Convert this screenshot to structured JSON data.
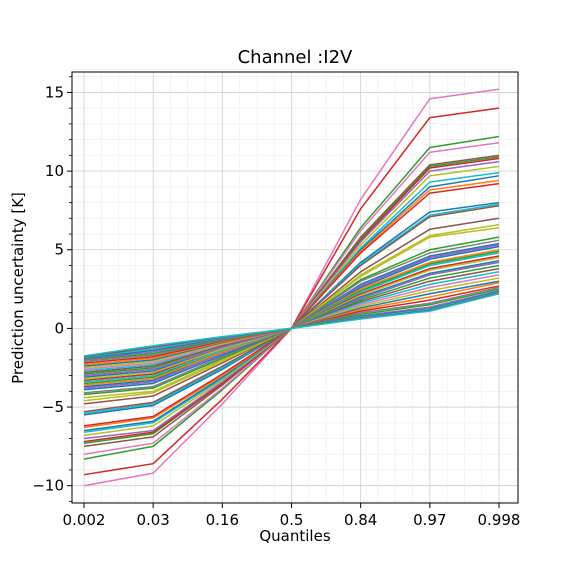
{
  "chart_data": {
    "type": "line",
    "title": "Channel :I2V",
    "xlabel": "Quantiles",
    "ylabel": "Prediction uncertainty [K]",
    "categories": [
      "0.002",
      "0.03",
      "0.16",
      "0.5",
      "0.84",
      "0.97",
      "0.998"
    ],
    "ylim": [
      -11.1,
      16.3
    ],
    "yticks": [
      -10,
      -5,
      0,
      5,
      10,
      15
    ],
    "ytick_labels": [
      "−10",
      "−5",
      "0",
      "5",
      "10",
      "15"
    ],
    "grid": true,
    "legend": "none",
    "colors": [
      "#1f77b4",
      "#ff7f0e",
      "#2ca02c",
      "#d62728",
      "#9467bd",
      "#8c564b",
      "#e377c2",
      "#7f7f7f",
      "#bcbd22",
      "#17becf"
    ],
    "series": [
      {
        "values": [
          -10.0,
          -9.2,
          -4.8,
          0,
          8.2,
          14.6,
          15.2
        ],
        "color": "#e377c2"
      },
      {
        "values": [
          -9.3,
          -8.6,
          -4.5,
          0,
          7.6,
          13.4,
          14.0
        ],
        "color": "#d62728"
      },
      {
        "values": [
          -8.3,
          -7.5,
          -3.9,
          0,
          6.4,
          11.5,
          12.2
        ],
        "color": "#2ca02c"
      },
      {
        "values": [
          -8.0,
          -7.3,
          -3.8,
          0,
          6.2,
          11.2,
          11.8
        ],
        "color": "#e377c2"
      },
      {
        "values": [
          -7.5,
          -6.9,
          -3.6,
          0,
          5.8,
          10.4,
          11.0
        ],
        "color": "#8c564b"
      },
      {
        "values": [
          -7.3,
          -6.7,
          -3.5,
          0,
          5.7,
          10.3,
          10.9
        ],
        "color": "#2ca02c"
      },
      {
        "values": [
          -7.2,
          -6.6,
          -3.5,
          0,
          5.6,
          10.2,
          10.8
        ],
        "color": "#d62728"
      },
      {
        "values": [
          -7.0,
          -6.5,
          -3.4,
          0,
          5.5,
          10.0,
          10.6
        ],
        "color": "#9467bd"
      },
      {
        "values": [
          -6.8,
          -6.2,
          -3.3,
          0,
          5.3,
          9.7,
          10.3
        ],
        "color": "#bcbd22"
      },
      {
        "values": [
          -6.6,
          -6.0,
          -3.2,
          0,
          5.1,
          9.3,
          9.9
        ],
        "color": "#17becf"
      },
      {
        "values": [
          -6.5,
          -5.9,
          -3.1,
          0,
          5.0,
          9.0,
          9.7
        ],
        "color": "#1f77b4"
      },
      {
        "values": [
          -6.3,
          -5.7,
          -3.0,
          0,
          4.9,
          8.8,
          9.4
        ],
        "color": "#ff7f0e"
      },
      {
        "values": [
          -6.2,
          -5.6,
          -2.9,
          0,
          4.8,
          8.6,
          9.2
        ],
        "color": "#d62728"
      },
      {
        "values": [
          -5.5,
          -4.9,
          -2.6,
          0,
          4.2,
          7.4,
          8.0
        ],
        "color": "#1f77b4"
      },
      {
        "values": [
          -5.4,
          -4.8,
          -2.5,
          0,
          4.1,
          7.2,
          7.9
        ],
        "color": "#17becf"
      },
      {
        "values": [
          -5.3,
          -4.7,
          -2.4,
          0,
          4.0,
          7.1,
          7.8
        ],
        "color": "#8c564b"
      },
      {
        "values": [
          -4.8,
          -4.3,
          -2.2,
          0,
          3.6,
          6.3,
          7.0
        ],
        "color": "#8c564b"
      },
      {
        "values": [
          -4.6,
          -4.1,
          -2.1,
          0,
          3.4,
          5.9,
          6.6
        ],
        "color": "#bcbd22"
      },
      {
        "values": [
          -4.4,
          -4.0,
          -2.0,
          0,
          3.3,
          5.8,
          6.4
        ],
        "color": "#bcbd22"
      },
      {
        "values": [
          -4.2,
          -3.8,
          -1.9,
          0,
          3.1,
          5.0,
          5.8
        ],
        "color": "#2ca02c"
      },
      {
        "values": [
          -4.1,
          -3.7,
          -1.8,
          0,
          3.0,
          4.8,
          5.6
        ],
        "color": "#7f7f7f"
      },
      {
        "values": [
          -3.9,
          -3.5,
          -1.7,
          0,
          2.8,
          4.6,
          5.4
        ],
        "color": "#1f77b4"
      },
      {
        "values": [
          -3.8,
          -3.4,
          -1.6,
          0,
          2.7,
          4.5,
          5.3
        ],
        "color": "#9467bd"
      },
      {
        "values": [
          -3.7,
          -3.3,
          -1.5,
          0,
          2.6,
          4.4,
          5.2
        ],
        "color": "#1f77b4"
      },
      {
        "values": [
          -3.6,
          -3.2,
          -1.5,
          0,
          2.5,
          4.2,
          5.0
        ],
        "color": "#ff7f0e"
      },
      {
        "values": [
          -3.5,
          -3.1,
          -1.4,
          0,
          2.4,
          4.1,
          4.9
        ],
        "color": "#2ca02c"
      },
      {
        "values": [
          -3.4,
          -3.0,
          -1.4,
          0,
          2.3,
          4.0,
          4.8
        ],
        "color": "#17becf"
      },
      {
        "values": [
          -3.3,
          -2.9,
          -1.3,
          0,
          2.2,
          3.8,
          4.6
        ],
        "color": "#d62728"
      },
      {
        "values": [
          -3.2,
          -2.8,
          -1.3,
          0,
          2.1,
          3.7,
          4.5
        ],
        "color": "#bcbd22"
      },
      {
        "values": [
          -3.1,
          -2.7,
          -1.2,
          0,
          2.0,
          3.5,
          4.3
        ],
        "color": "#1f77b4"
      },
      {
        "values": [
          -3.0,
          -2.6,
          -1.2,
          0,
          1.9,
          3.4,
          4.2
        ],
        "color": "#9467bd"
      },
      {
        "values": [
          -2.9,
          -2.5,
          -1.1,
          0,
          1.8,
          3.2,
          4.0
        ],
        "color": "#2ca02c"
      },
      {
        "values": [
          -2.8,
          -2.4,
          -1.1,
          0,
          1.7,
          3.0,
          3.8
        ],
        "color": "#8c564b"
      },
      {
        "values": [
          -2.7,
          -2.3,
          -1.0,
          0,
          1.6,
          2.8,
          3.6
        ],
        "color": "#17becf"
      },
      {
        "values": [
          -2.6,
          -2.2,
          -1.0,
          0,
          1.5,
          2.6,
          3.4
        ],
        "color": "#e377c2"
      },
      {
        "values": [
          -2.5,
          -2.1,
          -0.95,
          0,
          1.4,
          2.4,
          3.2
        ],
        "color": "#bcbd22"
      },
      {
        "values": [
          -2.4,
          -2.0,
          -0.9,
          0,
          1.3,
          2.2,
          3.0
        ],
        "color": "#1f77b4"
      },
      {
        "values": [
          -2.3,
          -1.9,
          -0.85,
          0,
          1.2,
          2.0,
          2.9
        ],
        "color": "#ff7f0e"
      },
      {
        "values": [
          -2.2,
          -1.8,
          -0.8,
          0,
          1.1,
          1.8,
          2.7
        ],
        "color": "#d62728"
      },
      {
        "values": [
          -2.1,
          -1.7,
          -0.75,
          0,
          1.0,
          1.6,
          2.6
        ],
        "color": "#7f7f7f"
      },
      {
        "values": [
          -2.0,
          -1.6,
          -0.7,
          0,
          0.9,
          1.5,
          2.5
        ],
        "color": "#2ca02c"
      },
      {
        "values": [
          -1.95,
          -1.5,
          -0.65,
          0,
          0.8,
          1.35,
          2.4
        ],
        "color": "#9467bd"
      },
      {
        "values": [
          -1.9,
          -1.4,
          -0.6,
          0,
          0.75,
          1.25,
          2.35
        ],
        "color": "#1f77b4"
      },
      {
        "values": [
          -1.85,
          -1.3,
          -0.58,
          0,
          0.7,
          1.2,
          2.3
        ],
        "color": "#17becf"
      },
      {
        "values": [
          -1.8,
          -1.2,
          -0.55,
          0,
          0.65,
          1.15,
          2.25
        ],
        "color": "#8c564b"
      },
      {
        "values": [
          -1.75,
          -1.1,
          -0.52,
          0,
          0.6,
          1.1,
          2.2
        ],
        "color": "#17becf"
      }
    ]
  }
}
